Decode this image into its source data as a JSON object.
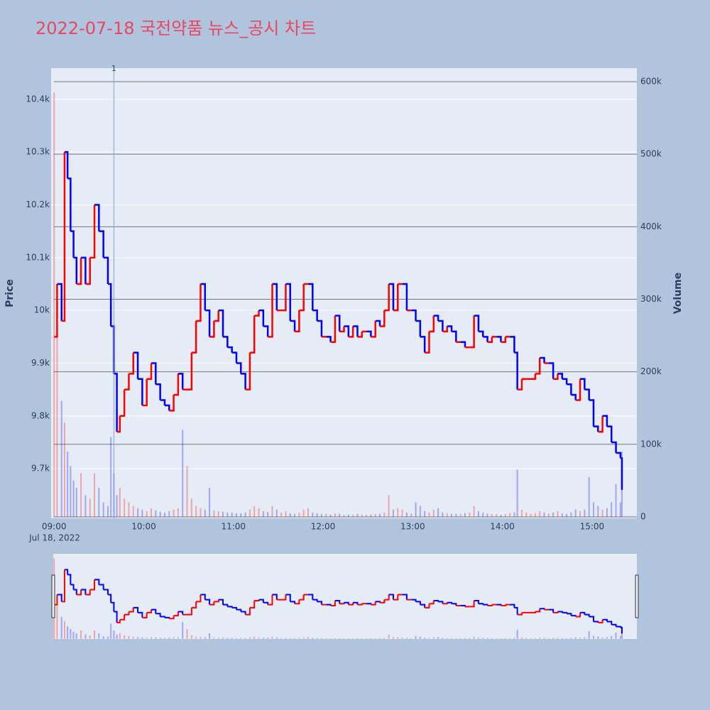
{
  "chart_data": {
    "type": "line",
    "title": "2022-07-18 국전약품 뉴스_공시 차트",
    "y_title": "Price",
    "y2_title": "Volume",
    "x_date_label": "Jul 18, 2022",
    "xlim": [
      "08:58",
      "15:30"
    ],
    "xticks": [
      "09:00",
      "10:00",
      "11:00",
      "12:00",
      "13:00",
      "14:00",
      "15:00"
    ],
    "ylim": [
      9606,
      10459
    ],
    "yticks": [
      {
        "value": 9700,
        "label": "9.7k"
      },
      {
        "value": 9800,
        "label": "9.8k"
      },
      {
        "value": 9900,
        "label": "9.9k"
      },
      {
        "value": 10000,
        "label": "10k"
      },
      {
        "value": 10100,
        "label": "10.1k"
      },
      {
        "value": 10200,
        "label": "10.2k"
      },
      {
        "value": 10300,
        "label": "10.3k"
      },
      {
        "value": 10400,
        "label": "10.4k"
      }
    ],
    "y2lim": [
      -2000,
      618600
    ],
    "y2ticks": [
      0,
      {
        "value": 100000,
        "label": "100k"
      },
      {
        "value": 200000,
        "label": "200k"
      },
      {
        "value": 300000,
        "label": "300k"
      },
      {
        "value": 400000,
        "label": "400k"
      },
      {
        "value": 500000,
        "label": "500k"
      },
      {
        "value": 600000,
        "label": "600k"
      }
    ],
    "grid": true,
    "increasing_color": "#ff0000",
    "decreasing_color": "#0000ff",
    "annotations": [
      {
        "x": "09:40",
        "text": "1"
      }
    ],
    "x": [
      "09:00",
      "09:02",
      "09:05",
      "09:07",
      "09:09",
      "09:11",
      "09:13",
      "09:15",
      "09:18",
      "09:21",
      "09:24",
      "09:27",
      "09:30",
      "09:33",
      "09:36",
      "09:38",
      "09:40",
      "09:42",
      "09:44",
      "09:47",
      "09:50",
      "09:53",
      "09:56",
      "09:59",
      "10:02",
      "10:05",
      "10:08",
      "10:11",
      "10:14",
      "10:17",
      "10:20",
      "10:23",
      "10:26",
      "10:29",
      "10:32",
      "10:35",
      "10:38",
      "10:41",
      "10:44",
      "10:47",
      "10:50",
      "10:53",
      "10:56",
      "10:59",
      "11:02",
      "11:05",
      "11:08",
      "11:11",
      "11:14",
      "11:17",
      "11:20",
      "11:23",
      "11:26",
      "11:29",
      "11:32",
      "11:35",
      "11:38",
      "11:41",
      "11:44",
      "11:47",
      "11:50",
      "11:53",
      "11:56",
      "11:59",
      "12:02",
      "12:05",
      "12:08",
      "12:11",
      "12:14",
      "12:17",
      "12:20",
      "12:23",
      "12:26",
      "12:29",
      "12:32",
      "12:35",
      "12:38",
      "12:41",
      "12:44",
      "12:47",
      "12:50",
      "12:53",
      "12:56",
      "12:59",
      "13:02",
      "13:05",
      "13:08",
      "13:11",
      "13:14",
      "13:17",
      "13:20",
      "13:23",
      "13:26",
      "13:29",
      "13:32",
      "13:35",
      "13:38",
      "13:41",
      "13:44",
      "13:47",
      "13:50",
      "13:53",
      "13:56",
      "13:59",
      "14:02",
      "14:05",
      "14:08",
      "14:10",
      "14:13",
      "14:16",
      "14:19",
      "14:22",
      "14:25",
      "14:28",
      "14:31",
      "14:34",
      "14:37",
      "14:40",
      "14:43",
      "14:46",
      "14:49",
      "14:52",
      "14:55",
      "14:58",
      "15:01",
      "15:04",
      "15:07",
      "15:10",
      "15:13",
      "15:16",
      "15:19",
      "15:20"
    ],
    "series": [
      {
        "name": "Price",
        "type": "line",
        "values": [
          9950,
          10050,
          9980,
          10300,
          10250,
          10150,
          10100,
          10050,
          10100,
          10050,
          10100,
          10200,
          10150,
          10100,
          10050,
          9970,
          9880,
          9770,
          9800,
          9850,
          9880,
          9920,
          9870,
          9820,
          9870,
          9900,
          9860,
          9830,
          9820,
          9810,
          9840,
          9880,
          9850,
          9850,
          9920,
          9980,
          10050,
          10000,
          9950,
          9980,
          10000,
          9950,
          9930,
          9920,
          9900,
          9880,
          9850,
          9920,
          9990,
          10000,
          9970,
          9950,
          10050,
          10000,
          10000,
          10050,
          9980,
          9960,
          10000,
          10050,
          10050,
          10000,
          9980,
          9950,
          9950,
          9940,
          9990,
          9960,
          9970,
          9950,
          9970,
          9950,
          9960,
          9960,
          9950,
          9980,
          9970,
          10000,
          10050,
          10000,
          10050,
          10050,
          10000,
          10000,
          9980,
          9950,
          9920,
          9960,
          9990,
          9980,
          9960,
          9970,
          9960,
          9940,
          9940,
          9930,
          9930,
          9990,
          9960,
          9950,
          9940,
          9950,
          9950,
          9940,
          9950,
          9950,
          9920,
          9850,
          9870,
          9870,
          9870,
          9880,
          9910,
          9900,
          9900,
          9870,
          9880,
          9870,
          9860,
          9840,
          9830,
          9870,
          9850,
          9830,
          9780,
          9770,
          9800,
          9780,
          9750,
          9730,
          9720,
          9660
        ]
      },
      {
        "name": "Volume",
        "type": "bar",
        "axis": "y2",
        "values": [
          585000,
          250000,
          160000,
          130000,
          90000,
          70000,
          50000,
          40000,
          60000,
          30000,
          25000,
          60000,
          40000,
          20000,
          15000,
          110000,
          60000,
          30000,
          40000,
          25000,
          20000,
          15000,
          12000,
          10000,
          8000,
          12000,
          9000,
          7000,
          6000,
          8000,
          10000,
          12000,
          120000,
          70000,
          25000,
          15000,
          12000,
          10000,
          40000,
          9000,
          8000,
          7000,
          6000,
          6000,
          5000,
          5000,
          6000,
          10000,
          15000,
          12000,
          8000,
          7000,
          15000,
          10000,
          6000,
          8000,
          5000,
          4000,
          6000,
          10000,
          12000,
          6000,
          5000,
          4000,
          4000,
          3000,
          5000,
          4000,
          3000,
          3000,
          3000,
          4000,
          3000,
          3000,
          3000,
          4000,
          4000,
          6000,
          30000,
          10000,
          12000,
          10000,
          6000,
          5000,
          20000,
          15000,
          8000,
          6000,
          10000,
          12000,
          6000,
          5000,
          4000,
          4000,
          4000,
          5000,
          6000,
          15000,
          8000,
          6000,
          5000,
          4000,
          4000,
          3000,
          4000,
          5000,
          6000,
          65000,
          10000,
          6000,
          4000,
          5000,
          8000,
          6000,
          5000,
          6000,
          8000,
          5000,
          4000,
          6000,
          10000,
          8000,
          10000,
          55000,
          20000,
          15000,
          10000,
          12000,
          20000,
          45000,
          20000,
          90000
        ]
      }
    ]
  }
}
